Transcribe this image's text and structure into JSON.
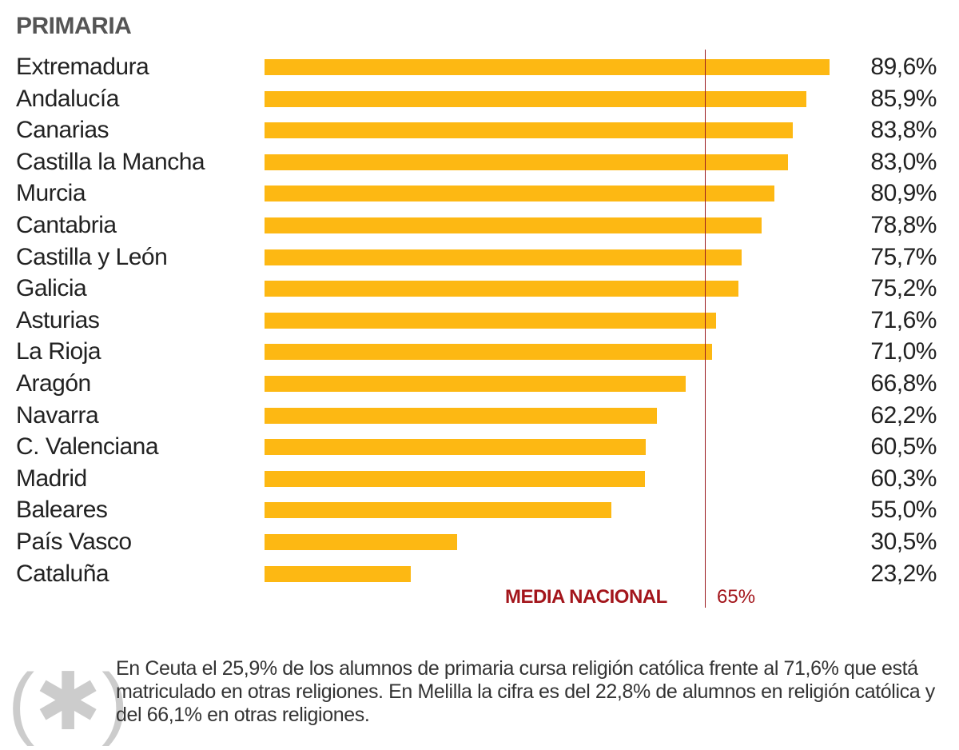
{
  "chart_data": {
    "type": "bar",
    "orientation": "horizontal",
    "title": "PRIMARIA",
    "categories": [
      "Extremadura",
      "Andalucía",
      "Canarias",
      "Castilla la Mancha",
      "Murcia",
      "Cantabria",
      "Castilla y León",
      "Galicia",
      "Asturias",
      "La Rioja",
      "Aragón",
      "Navarra",
      "C. Valenciana",
      "Madrid",
      "Baleares",
      "País Vasco",
      "Cataluña"
    ],
    "values": [
      89.6,
      85.9,
      83.8,
      83.0,
      80.9,
      78.8,
      75.7,
      75.2,
      71.6,
      71.0,
      66.8,
      62.2,
      60.5,
      60.3,
      55.0,
      30.5,
      23.2
    ],
    "value_labels": [
      "89,6%",
      "85,9%",
      "83,8%",
      "83,0%",
      "80,9%",
      "78,8%",
      "75,7%",
      "75,2%",
      "71,6%",
      "71,0%",
      "66,8%",
      "62,2%",
      "60,5%",
      "60,3%",
      "55,0%",
      "30,5%",
      "23,2%"
    ],
    "bar_color": "#FDB813",
    "reference_line": {
      "label": "MEDIA NACIONAL",
      "value_label": "65%",
      "value": 65,
      "color": "#a3151b"
    },
    "grid": false
  },
  "footnote": {
    "icon": "asterisk-icon",
    "text": "En Ceuta el 25,9% de los alumnos de primaria cursa religión católica frente al 71,6% que está matriculado en otras religiones. En Melilla la cifra es del 22,8% de alumnos en religión católica y del 66,1% en otras religiones."
  }
}
